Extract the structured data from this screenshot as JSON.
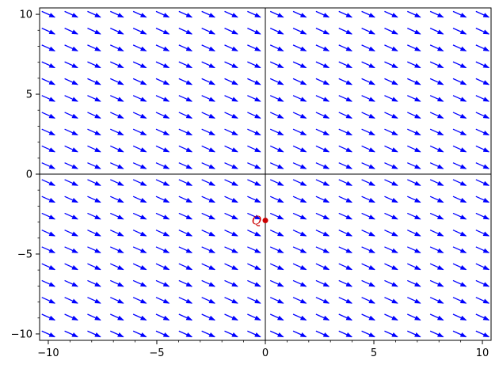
{
  "chart_data": {
    "type": "vector_field",
    "title": "",
    "xlabel": "",
    "ylabel": "",
    "xlim": [
      -10.4,
      10.4
    ],
    "ylim": [
      -10.4,
      10.4
    ],
    "grid": false,
    "axes_through_origin": true,
    "x_ticks": [
      {
        "value": -10,
        "label": "−10"
      },
      {
        "value": -5,
        "label": "−5"
      },
      {
        "value": 0,
        "label": "0"
      },
      {
        "value": 5,
        "label": "5"
      },
      {
        "value": 10,
        "label": "10"
      }
    ],
    "y_ticks": [
      {
        "value": -10,
        "label": "−10"
      },
      {
        "value": -5,
        "label": "−5"
      },
      {
        "value": 0,
        "label": "0"
      },
      {
        "value": 5,
        "label": "5"
      },
      {
        "value": 10,
        "label": "10"
      }
    ],
    "minor_tick_step": 1,
    "field": {
      "x_range": [
        -10,
        10
      ],
      "y_range": [
        -10,
        10
      ],
      "count": 20,
      "direction": [
        1,
        -0.45
      ],
      "color": "#0000ff"
    },
    "points": [
      {
        "x": 0,
        "y": -2.9,
        "label": "Q",
        "color": "#cc0000"
      }
    ]
  }
}
